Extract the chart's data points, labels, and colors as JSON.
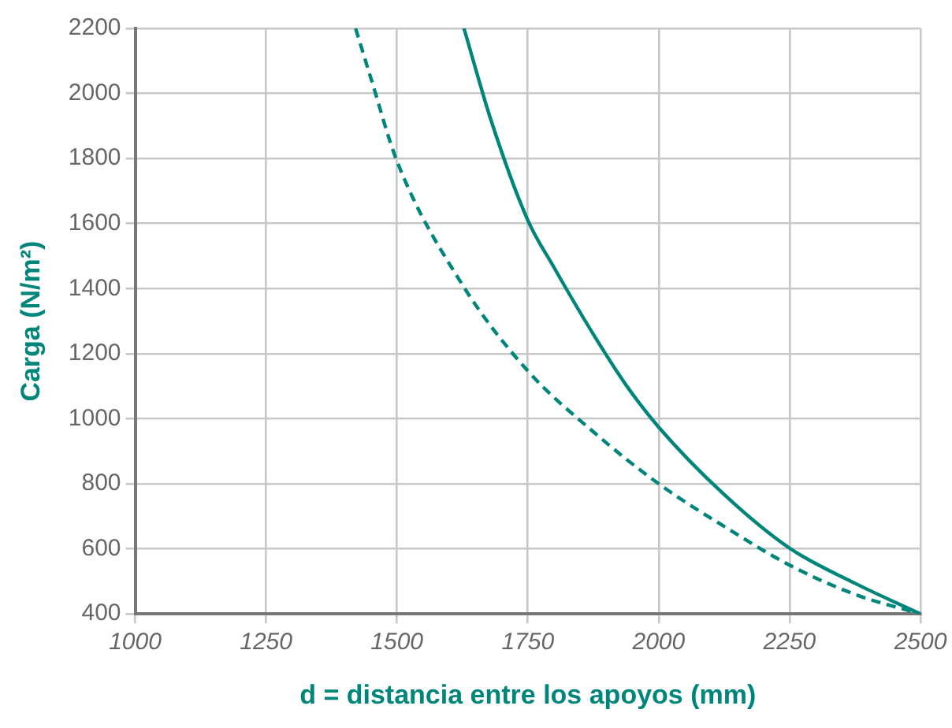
{
  "chart_data": {
    "type": "line",
    "xlabel": "d = distancia entre los apoyos (mm)",
    "ylabel": "Carga (N/m²)",
    "xlim": [
      1000,
      2500
    ],
    "xticks": [
      1000,
      1250,
      1500,
      1750,
      2000,
      2250,
      2500
    ],
    "ylim": [
      400,
      2200
    ],
    "yticks": [
      400,
      600,
      800,
      1000,
      1200,
      1400,
      1600,
      1800,
      2000,
      2200
    ],
    "grid": true,
    "legend": false,
    "marker": "none",
    "series": [
      {
        "color": "#00857a",
        "line_style": "solid",
        "x": [
          1628,
          1680,
          1750,
          1800,
          1875,
          1937,
          2000,
          2125,
          2250,
          2375,
          2500
        ],
        "values": [
          2200,
          1916,
          1610,
          1465,
          1260,
          1105,
          974,
          767,
          602,
          494,
          400
        ]
      },
      {
        "color": "#00857a",
        "line_style": "dashed",
        "x": [
          1421,
          1450,
          1500,
          1625,
          1750,
          1875,
          2000,
          2125,
          2250,
          2375,
          2500
        ],
        "values": [
          2200,
          2048,
          1792,
          1412,
          1147,
          960,
          800,
          669,
          550,
          460,
          400
        ]
      }
    ]
  }
}
